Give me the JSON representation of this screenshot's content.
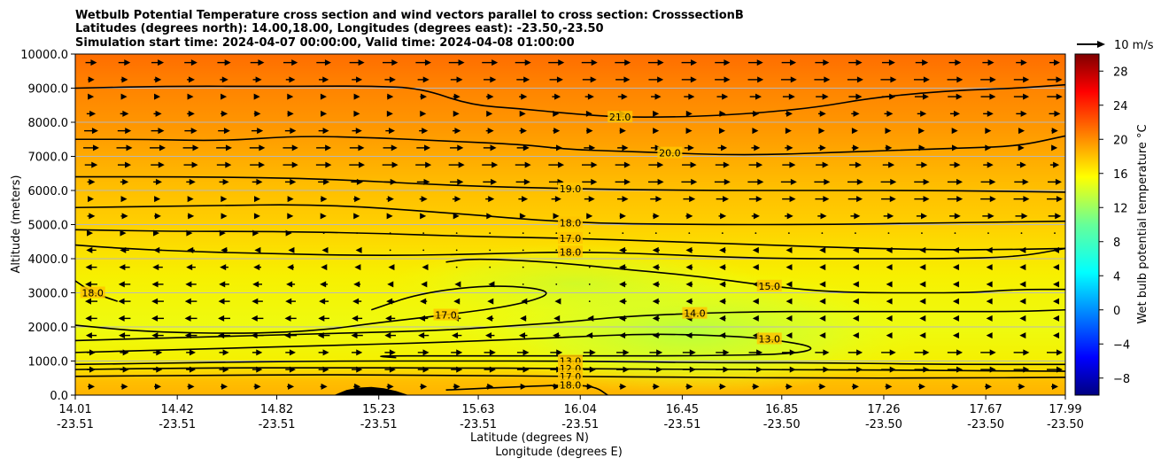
{
  "chart_data": {
    "type": "heatmap",
    "title_lines": [
      "Wetbulb Potential Temperature cross section and wind vectors parallel to cross section: CrosssectionB",
      "Latitudes (degrees north): 14.00,18.00, Longitudes (degrees east): -23.50,-23.50",
      "Simulation start time: 2024-04-07 00:00:00, Valid time: 2024-04-08 01:00:00"
    ],
    "xlabel_lines": [
      "Latitude (degrees N)",
      "Longitude (degrees E)"
    ],
    "ylabel": "Altitude (meters)",
    "x_range": [
      14.01,
      17.99
    ],
    "ylim": [
      0,
      10000
    ],
    "x_ticks": [
      {
        "lat": "14.01",
        "lon": "-23.51"
      },
      {
        "lat": "14.42",
        "lon": "-23.51"
      },
      {
        "lat": "14.82",
        "lon": "-23.51"
      },
      {
        "lat": "15.23",
        "lon": "-23.51"
      },
      {
        "lat": "15.63",
        "lon": "-23.51"
      },
      {
        "lat": "16.04",
        "lon": "-23.51"
      },
      {
        "lat": "16.45",
        "lon": "-23.51"
      },
      {
        "lat": "16.85",
        "lon": "-23.50"
      },
      {
        "lat": "17.26",
        "lon": "-23.50"
      },
      {
        "lat": "17.67",
        "lon": "-23.50"
      },
      {
        "lat": "17.99",
        "lon": "-23.50"
      }
    ],
    "y_ticks": [
      "0.0",
      "1000.0",
      "2000.0",
      "3000.0",
      "4000.0",
      "5000.0",
      "6000.0",
      "7000.0",
      "8000.0",
      "9000.0",
      "10000.0"
    ],
    "y_tick_values": [
      0,
      1000,
      2000,
      3000,
      4000,
      5000,
      6000,
      7000,
      8000,
      9000,
      10000
    ],
    "grid": "horizontal",
    "colorbar": {
      "label": "Wet bulb potential temperature °C",
      "colormap": "jet",
      "range": [
        -10,
        30
      ],
      "ticks": [
        "−8",
        "−4",
        "0",
        "4",
        "8",
        "12",
        "16",
        "20",
        "24",
        "28"
      ],
      "tick_values": [
        -8,
        -4,
        0,
        4,
        8,
        12,
        16,
        20,
        24,
        28
      ]
    },
    "wind_key": {
      "label": "10 m/s",
      "speed": 10
    },
    "contours": [
      {
        "level": "21.0",
        "x": [
          14.01,
          14.4,
          14.8,
          15.0,
          15.2,
          15.4,
          15.6,
          15.8,
          16.0,
          16.2,
          16.4,
          16.6,
          16.8,
          17.0,
          17.2,
          17.4,
          17.6,
          17.8,
          17.99
        ],
        "y": [
          9000,
          9060,
          9050,
          9060,
          9060,
          9000,
          8500,
          8400,
          8250,
          8150,
          8150,
          8200,
          8300,
          8450,
          8700,
          8850,
          8950,
          9000,
          9100
        ]
      },
      {
        "level": "20.0",
        "x": [
          14.01,
          14.3,
          14.6,
          14.9,
          15.2,
          15.5,
          15.8,
          16.0,
          16.2,
          16.4,
          16.6,
          16.8,
          17.0,
          17.2,
          17.4,
          17.6,
          17.8,
          17.99
        ],
        "y": [
          7500,
          7500,
          7450,
          7600,
          7550,
          7450,
          7350,
          7200,
          7150,
          7100,
          7050,
          7050,
          7100,
          7150,
          7200,
          7250,
          7300,
          7600
        ]
      },
      {
        "level": "19.0",
        "x": [
          14.01,
          14.5,
          15.0,
          15.5,
          16.0,
          16.5,
          17.0,
          17.5,
          17.99
        ],
        "y": [
          6400,
          6400,
          6350,
          6150,
          6050,
          6000,
          6000,
          6000,
          5950
        ]
      },
      {
        "level": "18.0",
        "x": [
          14.01,
          14.5,
          15.0,
          15.5,
          16.0,
          16.5,
          17.0,
          17.5,
          17.99
        ],
        "y": [
          5500,
          5550,
          5600,
          5350,
          5050,
          5000,
          5000,
          5050,
          5100
        ]
      },
      {
        "level": "17.0",
        "x": [
          14.01,
          14.4,
          14.8,
          15.2,
          15.6,
          16.0,
          16.4,
          16.8,
          17.2,
          17.6,
          17.99
        ],
        "y": [
          4850,
          4800,
          4800,
          4750,
          4650,
          4600,
          4500,
          4400,
          4300,
          4250,
          4300
        ]
      },
      {
        "level": "18.0",
        "x": [
          14.01,
          14.2,
          14.5,
          14.8,
          15.1,
          15.4,
          15.7,
          16.0,
          16.3,
          16.6,
          16.9,
          17.2,
          17.5,
          17.8,
          17.99
        ],
        "y": [
          4400,
          4300,
          4200,
          4150,
          4100,
          4100,
          4150,
          4200,
          4150,
          4050,
          4000,
          4000,
          4000,
          4050,
          4300
        ]
      },
      {
        "level": "15.0",
        "x": [
          15.5,
          15.6,
          15.8,
          16.0,
          16.2,
          16.5,
          16.8,
          17.0,
          17.2,
          17.4,
          17.6,
          17.8,
          17.99
        ],
        "y": [
          3900,
          4000,
          3950,
          3850,
          3700,
          3500,
          3200,
          3050,
          3000,
          3000,
          3000,
          3100,
          3100
        ]
      },
      {
        "level": "18.0",
        "x": [
          14.01,
          14.08,
          14.18
        ],
        "y": [
          3350,
          3000,
          2750
        ]
      },
      {
        "level": "17.0",
        "x": [
          14.01,
          14.3,
          14.7,
          15.0,
          15.2,
          15.5,
          15.8,
          15.95,
          15.7,
          15.4,
          15.2
        ],
        "y": [
          2050,
          1850,
          1800,
          1900,
          2100,
          2350,
          2650,
          3050,
          3250,
          3000,
          2500
        ]
      },
      {
        "level": "14.0",
        "x": [
          14.01,
          14.5,
          15.0,
          15.5,
          15.8,
          16.0,
          16.2,
          16.5,
          16.8,
          17.0,
          17.2,
          17.5,
          17.8,
          17.99
        ],
        "y": [
          1600,
          1700,
          1800,
          1900,
          2050,
          2150,
          2300,
          2400,
          2450,
          2450,
          2450,
          2450,
          2450,
          2500
        ]
      },
      {
        "level": "13.0",
        "x": [
          14.01,
          14.5,
          15.0,
          15.5,
          16.0,
          16.3,
          16.6,
          16.8,
          17.0,
          16.9,
          16.5,
          16.0,
          15.5,
          15.2,
          15.3
        ],
        "y": [
          1250,
          1350,
          1450,
          1550,
          1700,
          1800,
          1750,
          1650,
          1400,
          1200,
          1150,
          1150,
          1150,
          1150,
          1100
        ]
      },
      {
        "level": "13.0",
        "x": [
          14.01,
          14.5,
          15.0,
          15.5,
          16.0,
          16.5,
          17.0,
          17.5,
          17.99
        ],
        "y": [
          900,
          950,
          1000,
          1000,
          1000,
          950,
          950,
          900,
          900
        ]
      },
      {
        "level": "12.0",
        "x": [
          14.01,
          14.5,
          15.0,
          15.5,
          16.0,
          16.5,
          17.0,
          17.5,
          17.99
        ],
        "y": [
          750,
          800,
          800,
          800,
          780,
          750,
          750,
          720,
          700
        ]
      },
      {
        "level": "17.0",
        "x": [
          14.01,
          14.5,
          15.0,
          15.5,
          16.0,
          16.5,
          17.0,
          17.5,
          17.99
        ],
        "y": [
          550,
          580,
          600,
          580,
          550,
          520,
          500,
          500,
          520
        ]
      },
      {
        "level": "18.0",
        "x": [
          15.5,
          15.8,
          16.0,
          16.1,
          16.15
        ],
        "y": [
          150,
          250,
          300,
          250,
          0
        ]
      }
    ],
    "terrain": {
      "x": [
        15.05,
        15.1,
        15.15,
        15.2,
        15.25,
        15.3,
        15.35
      ],
      "y": [
        0,
        150,
        220,
        240,
        200,
        120,
        0
      ]
    }
  }
}
